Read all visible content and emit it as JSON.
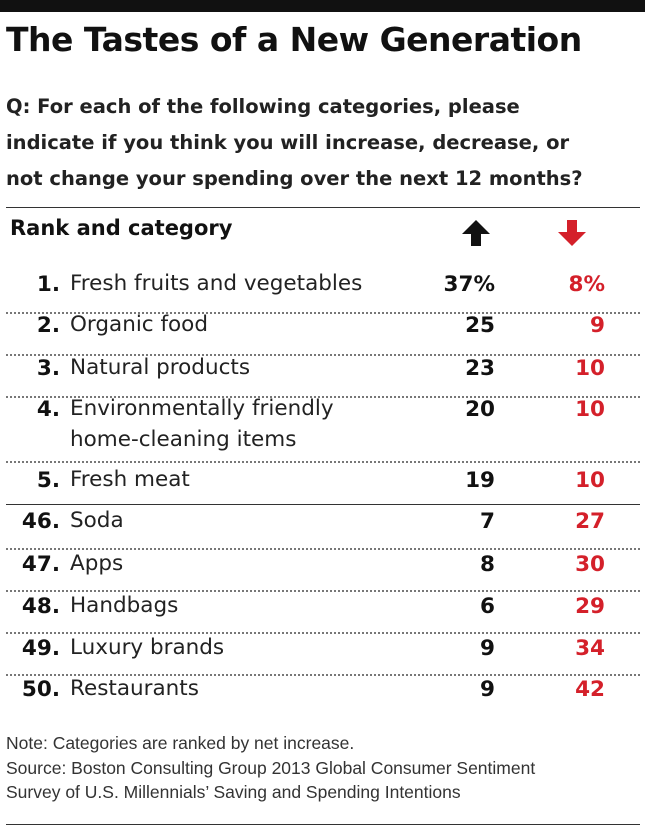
{
  "title": "The Tastes of a New Generation",
  "question_lines": [
    "Q: For each of the following categories, please",
    "indicate if you think you will increase, decrease, or",
    "not change your spending over the next 12 months?"
  ],
  "colors": {
    "increase": "#111111",
    "decrease": "#d4202a"
  },
  "icons": {
    "increase": "arrow-up-icon",
    "decrease": "arrow-down-icon"
  },
  "chart_data": {
    "type": "table",
    "columns": [
      "Rank and category",
      "increase",
      "decrease"
    ],
    "rows": [
      {
        "rank": "1.",
        "category": [
          "Fresh fruits and vegetables"
        ],
        "increase": "37%",
        "decrease": "8%"
      },
      {
        "rank": "2.",
        "category": [
          "Organic food"
        ],
        "increase": "25",
        "decrease": "9"
      },
      {
        "rank": "3.",
        "category": [
          "Natural products"
        ],
        "increase": "23",
        "decrease": "10"
      },
      {
        "rank": "4.",
        "category": [
          "Environmentally friendly",
          "home-cleaning items"
        ],
        "increase": "20",
        "decrease": "10"
      },
      {
        "rank": "5.",
        "category": [
          "Fresh meat"
        ],
        "increase": "19",
        "decrease": "10"
      },
      {
        "rank": "46.",
        "category": [
          "Soda"
        ],
        "increase": "7",
        "decrease": "27"
      },
      {
        "rank": "47.",
        "category": [
          "Apps"
        ],
        "increase": "8",
        "decrease": "30"
      },
      {
        "rank": "48.",
        "category": [
          "Handbags"
        ],
        "increase": "6",
        "decrease": "29"
      },
      {
        "rank": "49.",
        "category": [
          "Luxury brands"
        ],
        "increase": "9",
        "decrease": "34"
      },
      {
        "rank": "50.",
        "category": [
          "Restaurants"
        ],
        "increase": "9",
        "decrease": "42"
      }
    ]
  },
  "notes": [
    "Note: Categories are ranked by net increase.",
    "Source: Boston Consulting Group 2013 Global Consumer Sentiment",
    "Survey of U.S. Millennials’ Saving and Spending Intentions"
  ]
}
